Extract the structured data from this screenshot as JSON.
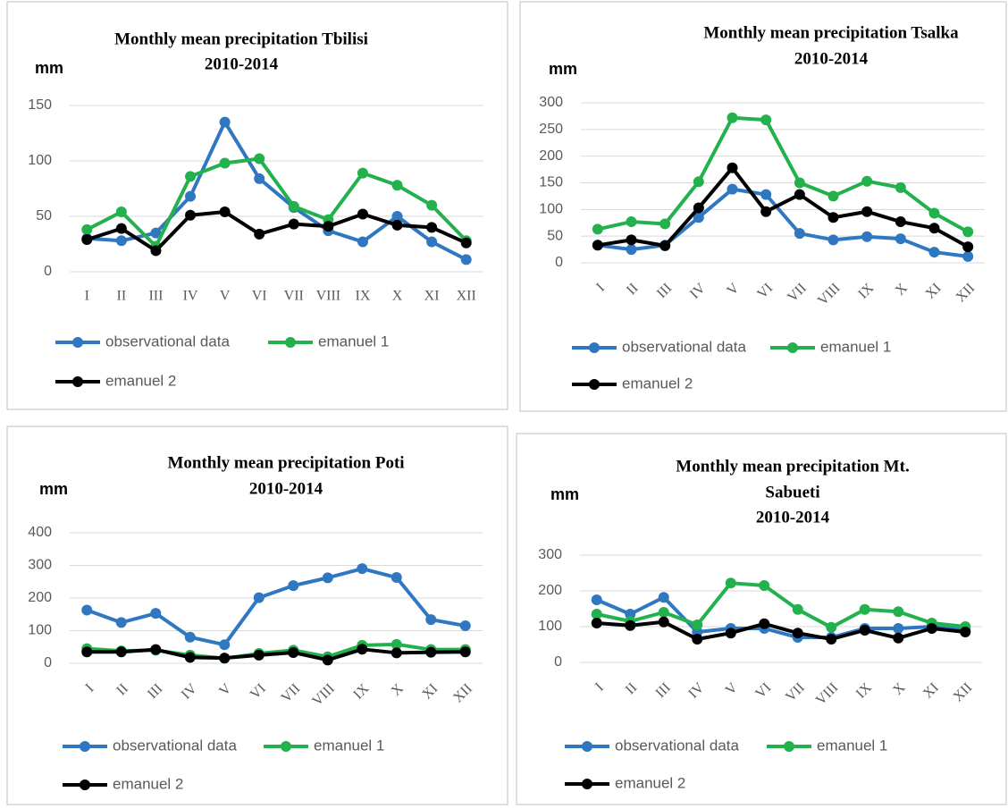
{
  "chart_data": [
    {
      "type": "line",
      "title": [
        "Monthly mean precipitation  Tbilisi",
        "2010-2014"
      ],
      "y_label": "mm",
      "categories": [
        "I",
        "II",
        "III",
        "IV",
        "V",
        "VI",
        "VII",
        "VIII",
        "IX",
        "X",
        "XI",
        "XII"
      ],
      "ylim": [
        0,
        150
      ],
      "yticks": [
        0,
        50,
        100,
        150
      ],
      "grid": true,
      "series": [
        {
          "name": "observational data",
          "color": "#2f78c1",
          "values": [
            30,
            28,
            35,
            68,
            135,
            84,
            58,
            37,
            27,
            50,
            27,
            11
          ]
        },
        {
          "name": "emanuel 1",
          "color": "#22b14c",
          "values": [
            38,
            54,
            23,
            86,
            98,
            102,
            59,
            47,
            89,
            78,
            60,
            28
          ]
        },
        {
          "name": "emanuel 2",
          "color": "#000000",
          "values": [
            29,
            39,
            19,
            51,
            54,
            34,
            43,
            41,
            52,
            42,
            40,
            26
          ]
        }
      ]
    },
    {
      "type": "line",
      "title": [
        "Monthly mean precipitation Tsalka",
        "2010-2014"
      ],
      "y_label": "mm",
      "categories": [
        "I",
        "II",
        "III",
        "IV",
        "V",
        "VI",
        "VII",
        "VIII",
        "IX",
        "X",
        "XI",
        "XII"
      ],
      "ylim": [
        0,
        300
      ],
      "yticks": [
        0,
        50,
        100,
        150,
        200,
        250,
        300
      ],
      "grid": true,
      "series": [
        {
          "name": "observational data",
          "color": "#2f78c1",
          "values": [
            33,
            25,
            33,
            85,
            138,
            128,
            55,
            43,
            49,
            45,
            20,
            12
          ]
        },
        {
          "name": "emanuel 1",
          "color": "#22b14c",
          "values": [
            63,
            77,
            73,
            152,
            272,
            268,
            150,
            125,
            153,
            141,
            93,
            58
          ]
        },
        {
          "name": "emanuel 2",
          "color": "#000000",
          "values": [
            33,
            43,
            32,
            103,
            178,
            96,
            128,
            85,
            96,
            77,
            65,
            30
          ]
        }
      ]
    },
    {
      "type": "line",
      "title": [
        "Monthly mean precipitation Poti",
        "2010-2014"
      ],
      "y_label": "mm",
      "categories": [
        "I",
        "II",
        "III",
        "IV",
        "V",
        "VI",
        "VII",
        "VIII",
        "IX",
        "X",
        "XI",
        "XII"
      ],
      "ylim": [
        0,
        400
      ],
      "yticks": [
        0,
        100,
        200,
        300,
        400
      ],
      "grid": true,
      "series": [
        {
          "name": "observational data",
          "color": "#2f78c1",
          "values": [
            163,
            125,
            153,
            80,
            57,
            201,
            238,
            262,
            290,
            263,
            134,
            115
          ]
        },
        {
          "name": "emanuel 1",
          "color": "#22b14c",
          "values": [
            45,
            38,
            40,
            25,
            15,
            30,
            40,
            20,
            55,
            58,
            42,
            42
          ]
        },
        {
          "name": "emanuel 2",
          "color": "#000000",
          "values": [
            35,
            35,
            42,
            18,
            16,
            25,
            33,
            10,
            43,
            32,
            34,
            35
          ]
        }
      ]
    },
    {
      "type": "line",
      "title": [
        "Monthly mean precipitation Mt.",
        "Sabueti",
        "2010-2014"
      ],
      "y_label": "mm",
      "categories": [
        "I",
        "II",
        "III",
        "IV",
        "V",
        "VI",
        "VII",
        "VIII",
        "IX",
        "X",
        "XI",
        "XII"
      ],
      "ylim": [
        0,
        300
      ],
      "yticks": [
        0,
        100,
        200,
        300
      ],
      "grid": true,
      "series": [
        {
          "name": "observational data",
          "color": "#2f78c1",
          "values": [
            175,
            135,
            182,
            85,
            95,
            95,
            70,
            70,
            95,
            95,
            100,
            90
          ]
        },
        {
          "name": "emanuel 1",
          "color": "#22b14c",
          "values": [
            135,
            115,
            140,
            105,
            222,
            215,
            148,
            98,
            148,
            142,
            110,
            100
          ]
        },
        {
          "name": "emanuel 2",
          "color": "#000000",
          "values": [
            110,
            103,
            113,
            65,
            82,
            108,
            82,
            65,
            90,
            68,
            95,
            85
          ]
        }
      ]
    }
  ]
}
